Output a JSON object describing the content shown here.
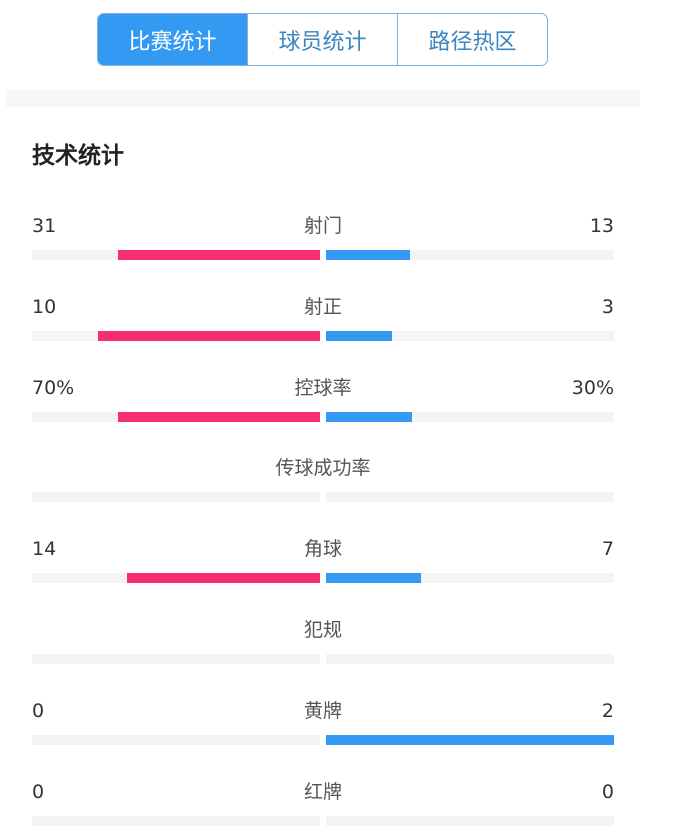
{
  "tabs": [
    {
      "label": "比赛统计",
      "active": true
    },
    {
      "label": "球员统计",
      "active": false
    },
    {
      "label": "路径热区",
      "active": false
    }
  ],
  "section_title": "技术统计",
  "colors": {
    "home": "#f72d72",
    "away": "#3399f3",
    "accent": "#3399f3"
  },
  "stats": [
    {
      "label": "射门",
      "home": "31",
      "away": "13",
      "home_share": 0.7,
      "away_share": 0.29
    },
    {
      "label": "射正",
      "home": "10",
      "away": "3",
      "home_share": 0.77,
      "away_share": 0.23
    },
    {
      "label": "控球率",
      "home": "70%",
      "away": "30%",
      "home_share": 0.7,
      "away_share": 0.3
    },
    {
      "label": "传球成功率",
      "home": "",
      "away": "",
      "home_share": 0,
      "away_share": 0
    },
    {
      "label": "角球",
      "home": "14",
      "away": "7",
      "home_share": 0.67,
      "away_share": 0.33
    },
    {
      "label": "犯规",
      "home": "",
      "away": "",
      "home_share": 0,
      "away_share": 0
    },
    {
      "label": "黄牌",
      "home": "0",
      "away": "2",
      "home_share": 0,
      "away_share": 1
    },
    {
      "label": "红牌",
      "home": "0",
      "away": "0",
      "home_share": 0,
      "away_share": 0
    }
  ]
}
